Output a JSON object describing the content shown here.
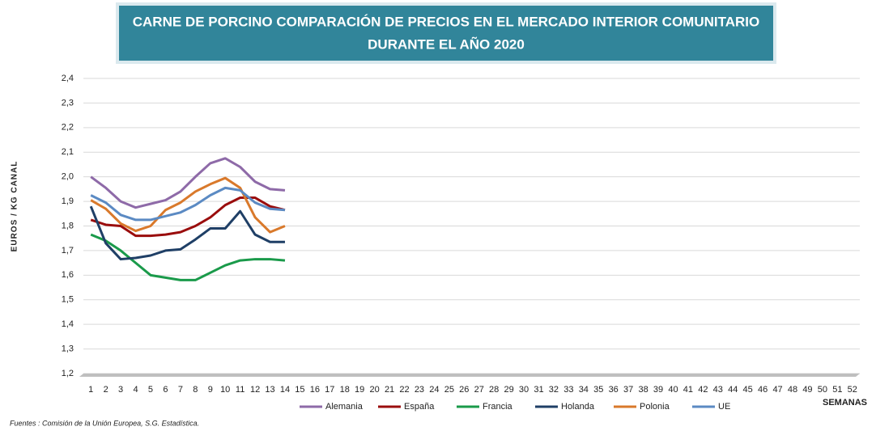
{
  "chart_data": {
    "type": "line",
    "title": [
      "CARNE DE PORCINO COMPARACIÓN DE PRECIOS EN EL MERCADO INTERIOR COMUNITARIO",
      "DURANTE  EL AÑO 2020"
    ],
    "y_label": "EUROS / KG CANAL",
    "x_label": "SEMANAS",
    "source": "Fuentes : Comisión de la Unión Europea, S.G. Estadística.",
    "categories": [
      1,
      2,
      3,
      4,
      5,
      6,
      7,
      8,
      9,
      10,
      11,
      12,
      13,
      14,
      15,
      16,
      17,
      18,
      19,
      20,
      21,
      22,
      23,
      24,
      25,
      26,
      27,
      28,
      29,
      30,
      31,
      32,
      33,
      34,
      35,
      36,
      37,
      38,
      39,
      40,
      41,
      42,
      43,
      44,
      45,
      46,
      47,
      48,
      49,
      50,
      51,
      52
    ],
    "ylim": [
      1.2,
      2.4
    ],
    "yticks": [
      {
        "value": 1.2,
        "label": "1,2"
      },
      {
        "value": 1.3,
        "label": "1,3"
      },
      {
        "value": 1.4,
        "label": "1,4"
      },
      {
        "value": 1.5,
        "label": "1,5"
      },
      {
        "value": 1.6,
        "label": "1,6"
      },
      {
        "value": 1.7,
        "label": "1,7"
      },
      {
        "value": 1.8,
        "label": "1,8"
      },
      {
        "value": 1.9,
        "label": "1,9"
      },
      {
        "value": 2.0,
        "label": "2,0"
      },
      {
        "value": 2.1,
        "label": "2,1"
      },
      {
        "value": 2.2,
        "label": "2,2"
      },
      {
        "value": 2.3,
        "label": "2,3"
      },
      {
        "value": 2.4,
        "label": "2,4"
      }
    ],
    "grid": true,
    "legend": "bottom",
    "series": [
      {
        "name": "Alemania",
        "color": "#8e6aa8",
        "values": [
          2.0,
          1.955,
          1.9,
          1.875,
          1.89,
          1.905,
          1.94,
          2.0,
          2.055,
          2.075,
          2.04,
          1.98,
          1.95,
          1.945,
          null,
          null,
          null,
          null,
          null,
          null,
          null,
          null,
          null,
          null,
          null,
          null,
          null,
          null,
          null,
          null,
          null,
          null,
          null,
          null,
          null,
          null,
          null,
          null,
          null,
          null,
          null,
          null,
          null,
          null,
          null,
          null,
          null,
          null,
          null,
          null,
          null,
          null
        ]
      },
      {
        "name": "España",
        "color": "#9a0d0d",
        "values": [
          1.825,
          1.805,
          1.8,
          1.76,
          1.76,
          1.765,
          1.775,
          1.8,
          1.835,
          1.885,
          1.915,
          1.915,
          1.88,
          1.865,
          null,
          null,
          null,
          null,
          null,
          null,
          null,
          null,
          null,
          null,
          null,
          null,
          null,
          null,
          null,
          null,
          null,
          null,
          null,
          null,
          null,
          null,
          null,
          null,
          null,
          null,
          null,
          null,
          null,
          null,
          null,
          null,
          null,
          null,
          null,
          null,
          null,
          null
        ]
      },
      {
        "name": "Francia",
        "color": "#1a9a4a",
        "values": [
          1.765,
          1.74,
          1.7,
          1.65,
          1.6,
          1.59,
          1.58,
          1.58,
          1.61,
          1.64,
          1.66,
          1.665,
          1.665,
          1.66,
          null,
          null,
          null,
          null,
          null,
          null,
          null,
          null,
          null,
          null,
          null,
          null,
          null,
          null,
          null,
          null,
          null,
          null,
          null,
          null,
          null,
          null,
          null,
          null,
          null,
          null,
          null,
          null,
          null,
          null,
          null,
          null,
          null,
          null,
          null,
          null,
          null,
          null
        ]
      },
      {
        "name": "Holanda",
        "color": "#1f3f66",
        "values": [
          1.88,
          1.73,
          1.665,
          1.67,
          1.68,
          1.7,
          1.705,
          1.745,
          1.79,
          1.79,
          1.86,
          1.765,
          1.735,
          1.735,
          null,
          null,
          null,
          null,
          null,
          null,
          null,
          null,
          null,
          null,
          null,
          null,
          null,
          null,
          null,
          null,
          null,
          null,
          null,
          null,
          null,
          null,
          null,
          null,
          null,
          null,
          null,
          null,
          null,
          null,
          null,
          null,
          null,
          null,
          null,
          null,
          null,
          null
        ]
      },
      {
        "name": "Polonia",
        "color": "#d9792b",
        "values": [
          1.905,
          1.87,
          1.81,
          1.78,
          1.8,
          1.865,
          1.895,
          1.94,
          1.97,
          1.995,
          1.955,
          1.835,
          1.775,
          1.8,
          null,
          null,
          null,
          null,
          null,
          null,
          null,
          null,
          null,
          null,
          null,
          null,
          null,
          null,
          null,
          null,
          null,
          null,
          null,
          null,
          null,
          null,
          null,
          null,
          null,
          null,
          null,
          null,
          null,
          null,
          null,
          null,
          null,
          null,
          null,
          null,
          null,
          null
        ]
      },
      {
        "name": "UE",
        "color": "#5b8ac3",
        "values": [
          1.925,
          1.895,
          1.845,
          1.825,
          1.825,
          1.84,
          1.855,
          1.885,
          1.925,
          1.955,
          1.945,
          1.895,
          1.87,
          1.865,
          null,
          null,
          null,
          null,
          null,
          null,
          null,
          null,
          null,
          null,
          null,
          null,
          null,
          null,
          null,
          null,
          null,
          null,
          null,
          null,
          null,
          null,
          null,
          null,
          null,
          null,
          null,
          null,
          null,
          null,
          null,
          null,
          null,
          null,
          null,
          null,
          null,
          null
        ]
      }
    ]
  }
}
